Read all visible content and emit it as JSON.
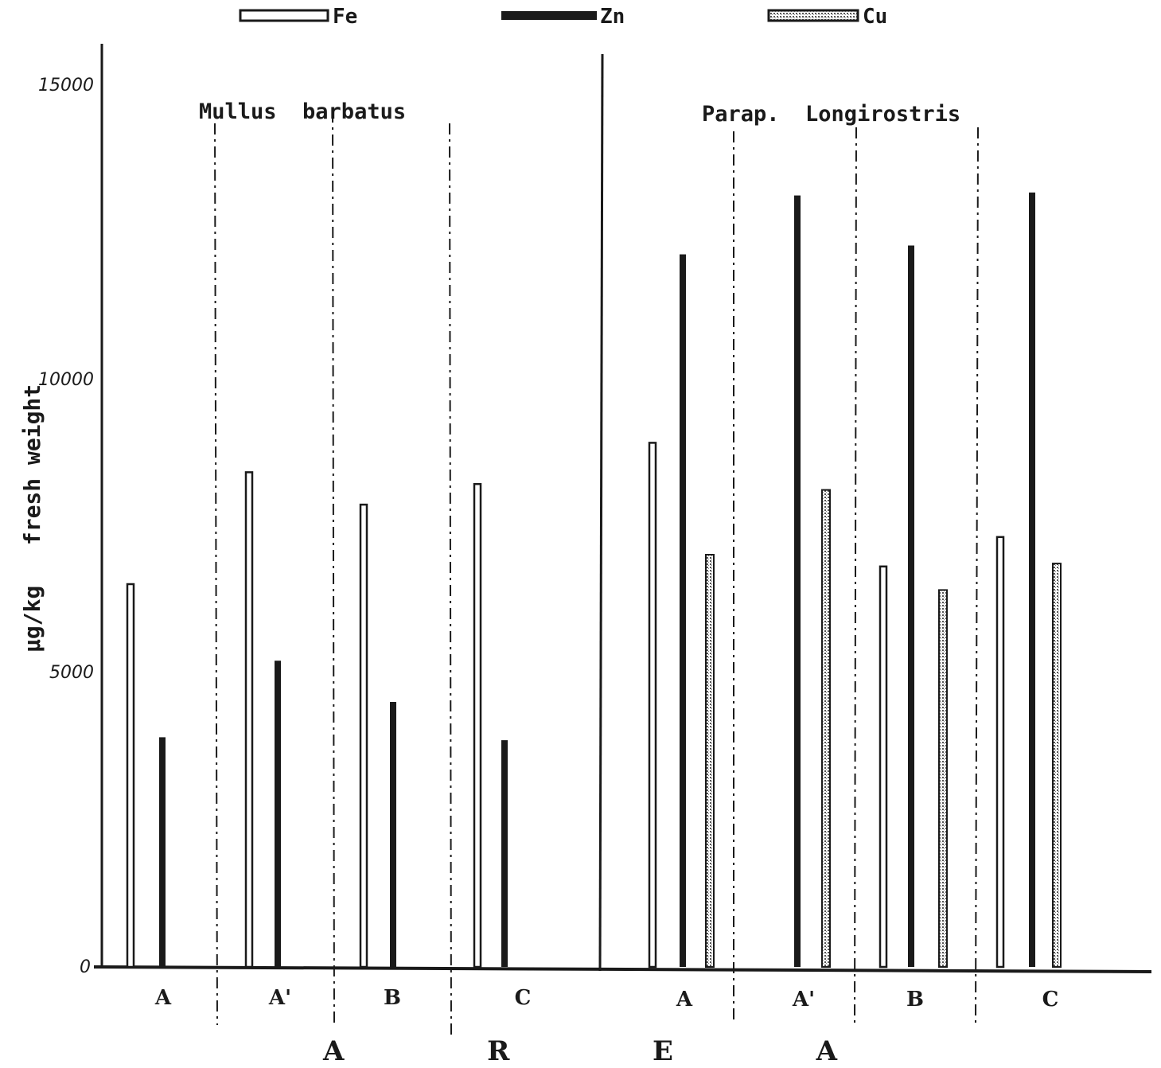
{
  "chart_data": {
    "type": "bar",
    "ylabel": "µg/kg   fresh weight",
    "xlabel": "A  R  E  A",
    "ylim": [
      0,
      15000
    ],
    "yticks": [
      {
        "value": 0,
        "label": "0"
      },
      {
        "value": 5000,
        "label": "5000"
      },
      {
        "value": 10000,
        "label": "10000"
      },
      {
        "value": 15000,
        "label": "15000"
      }
    ],
    "legend": [
      {
        "name": "Fe",
        "style": "hollow",
        "color": "#ffffff"
      },
      {
        "name": "Zn",
        "style": "solid",
        "color": "#1a1a1a"
      },
      {
        "name": "Cu",
        "style": "dotted",
        "color": "#bdbdbd"
      }
    ],
    "panels": [
      {
        "species": "Mullus  barbatus",
        "sites": [
          {
            "label": "A",
            "Fe": 6500,
            "Zn": 3900,
            "Cu": null
          },
          {
            "label": "A'",
            "Fe": 8400,
            "Zn": 5200,
            "Cu": null
          },
          {
            "label": "B",
            "Fe": 7850,
            "Zn": 4500,
            "Cu": null
          },
          {
            "label": "C",
            "Fe": 8200,
            "Zn": 3850,
            "Cu": null
          }
        ]
      },
      {
        "species": "Parap.  Longirostris",
        "sites": [
          {
            "label": "A",
            "Fe": 8900,
            "Zn": 12100,
            "Cu": 7000
          },
          {
            "label": "A'",
            "Fe": null,
            "Zn": 13100,
            "Cu": 8100
          },
          {
            "label": "B",
            "Fe": 6800,
            "Zn": 12250,
            "Cu": 6400
          },
          {
            "label": "C",
            "Fe": 7300,
            "Zn": 13150,
            "Cu": 6850
          }
        ]
      }
    ]
  }
}
